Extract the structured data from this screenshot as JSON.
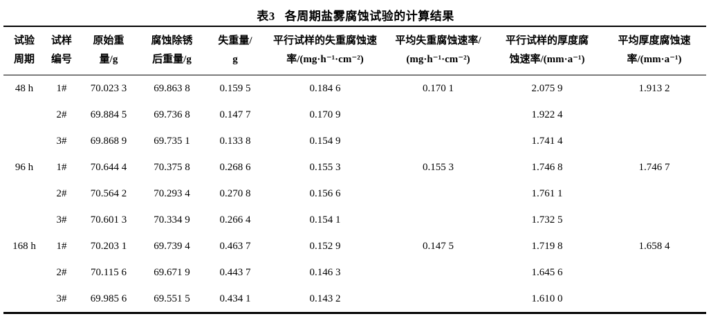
{
  "title": {
    "prefix": "表3",
    "text": "各周期盐雾腐蚀试验的计算结果"
  },
  "table": {
    "columns": [
      {
        "line1": "试验",
        "line2": "周期"
      },
      {
        "line1": "试样",
        "line2": "编号"
      },
      {
        "line1": "原始重",
        "line2": "量/g"
      },
      {
        "line1": "腐蚀除锈",
        "line2": "后重量/g"
      },
      {
        "line1": "失重量/",
        "line2": "g"
      },
      {
        "line1": "平行试样的失重腐蚀速",
        "line2": "率/(mg·h⁻¹·cm⁻²)"
      },
      {
        "line1": "平均失重腐蚀速率/",
        "line2": "(mg·h⁻¹·cm⁻²)"
      },
      {
        "line1": "平行试样的厚度腐",
        "line2": "蚀速率/(mm·a⁻¹)"
      },
      {
        "line1": "平均厚度腐蚀速",
        "line2": "率/(mm·a⁻¹)"
      }
    ],
    "rows": [
      [
        "48 h",
        "1#",
        "70.023 3",
        "69.863 8",
        "0.159 5",
        "0.184 6",
        "0.170 1",
        "2.075 9",
        "1.913 2"
      ],
      [
        "",
        "2#",
        "69.884 5",
        "69.736 8",
        "0.147 7",
        "0.170 9",
        "",
        "1.922 4",
        ""
      ],
      [
        "",
        "3#",
        "69.868 9",
        "69.735 1",
        "0.133 8",
        "0.154 9",
        "",
        "1.741 4",
        ""
      ],
      [
        "96 h",
        "1#",
        "70.644 4",
        "70.375 8",
        "0.268 6",
        "0.155 3",
        "0.155 3",
        "1.746 8",
        "1.746 7"
      ],
      [
        "",
        "2#",
        "70.564 2",
        "70.293 4",
        "0.270 8",
        "0.156 6",
        "",
        "1.761 1",
        ""
      ],
      [
        "",
        "3#",
        "70.601 3",
        "70.334 9",
        "0.266 4",
        "0.154 1",
        "",
        "1.732 5",
        ""
      ],
      [
        "168 h",
        "1#",
        "70.203 1",
        "69.739 4",
        "0.463 7",
        "0.152 9",
        "0.147 5",
        "1.719 8",
        "1.658 4"
      ],
      [
        "",
        "2#",
        "70.115 6",
        "69.671 9",
        "0.443 7",
        "0.146 3",
        "",
        "1.645 6",
        ""
      ],
      [
        "",
        "3#",
        "69.985 6",
        "69.551 5",
        "0.434 1",
        "0.143 2",
        "",
        "1.610 0",
        ""
      ]
    ]
  },
  "colors": {
    "background": "#ffffff",
    "text": "#000000",
    "rule": "#000000"
  }
}
